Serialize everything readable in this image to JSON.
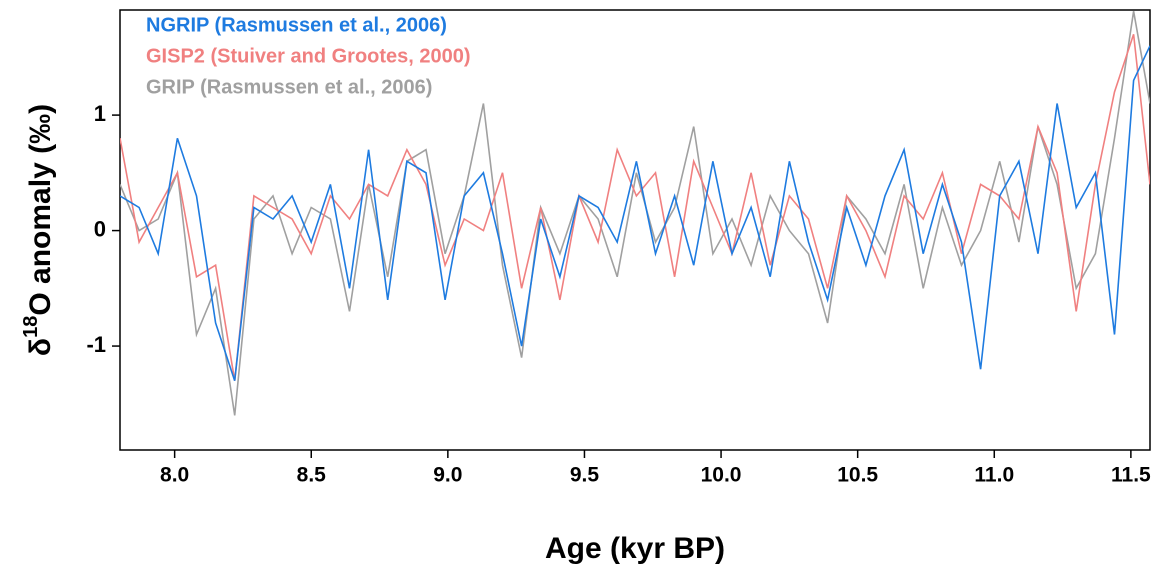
{
  "chart_data": {
    "type": "line",
    "xlabel": "Age (kyr BP)",
    "ylabel_parts": [
      "δ",
      "18",
      "O anomaly (‰)"
    ],
    "legend": "upper left",
    "x": [
      7.8,
      7.87,
      7.94,
      8.01,
      8.08,
      8.15,
      8.22,
      8.29,
      8.36,
      8.43,
      8.5,
      8.57,
      8.64,
      8.71,
      8.78,
      8.85,
      8.92,
      8.99,
      9.06,
      9.13,
      9.2,
      9.27,
      9.34,
      9.41,
      9.48,
      9.55,
      9.62,
      9.69,
      9.76,
      9.83,
      9.9,
      9.97,
      10.04,
      10.11,
      10.18,
      10.25,
      10.32,
      10.39,
      10.46,
      10.53,
      10.6,
      10.67,
      10.74,
      10.81,
      10.88,
      10.95,
      11.02,
      11.09,
      11.16,
      11.23,
      11.3,
      11.37,
      11.44,
      11.51,
      11.57
    ],
    "series": [
      {
        "name": "NGRIP (Rasmussen et al., 2006)",
        "color": "#1e7be0",
        "values": [
          0.3,
          0.2,
          -0.2,
          0.8,
          0.3,
          -0.8,
          -1.3,
          0.2,
          0.1,
          0.3,
          -0.1,
          0.4,
          -0.5,
          0.7,
          -0.6,
          0.6,
          0.5,
          -0.6,
          0.3,
          0.5,
          -0.2,
          -1.0,
          0.1,
          -0.4,
          0.3,
          0.2,
          -0.1,
          0.6,
          -0.2,
          0.3,
          -0.3,
          0.6,
          -0.2,
          0.2,
          -0.4,
          0.6,
          -0.1,
          -0.6,
          0.2,
          -0.3,
          0.3,
          0.7,
          -0.2,
          0.4,
          -0.1,
          -1.2,
          0.3,
          0.6,
          -0.2,
          1.1,
          0.2,
          0.5,
          -0.9,
          1.3,
          1.6
        ]
      },
      {
        "name": "GISP2 (Stuiver and Grootes, 2000)",
        "color": "#f08080",
        "values": [
          0.8,
          -0.1,
          0.2,
          0.5,
          -0.4,
          -0.3,
          -1.3,
          0.3,
          0.2,
          0.1,
          -0.2,
          0.3,
          0.1,
          0.4,
          0.3,
          0.7,
          0.4,
          -0.3,
          0.1,
          0.0,
          0.5,
          -0.5,
          0.2,
          -0.6,
          0.3,
          -0.1,
          0.7,
          0.3,
          0.5,
          -0.4,
          0.6,
          0.2,
          -0.2,
          0.5,
          -0.3,
          0.3,
          0.1,
          -0.5,
          0.3,
          0.0,
          -0.4,
          0.3,
          0.1,
          0.5,
          -0.2,
          0.4,
          0.3,
          0.1,
          0.9,
          0.5,
          -0.7,
          0.4,
          1.2,
          1.7,
          0.4
        ]
      },
      {
        "name": "GRIP (Rasmussen et al., 2006)",
        "color": "#a0a0a0",
        "values": [
          0.4,
          0.0,
          0.1,
          0.5,
          -0.9,
          -0.5,
          -1.6,
          0.1,
          0.3,
          -0.2,
          0.2,
          0.1,
          -0.7,
          0.4,
          -0.4,
          0.6,
          0.7,
          -0.2,
          0.3,
          1.1,
          -0.3,
          -1.1,
          0.2,
          -0.2,
          0.3,
          0.1,
          -0.4,
          0.5,
          -0.1,
          0.2,
          0.9,
          -0.2,
          0.1,
          -0.3,
          0.3,
          0.0,
          -0.2,
          -0.8,
          0.3,
          0.1,
          -0.2,
          0.4,
          -0.5,
          0.2,
          -0.3,
          0.0,
          0.6,
          -0.1,
          0.9,
          0.4,
          -0.5,
          -0.2,
          0.8,
          1.9,
          1.1
        ]
      }
    ],
    "xlim": [
      7.8,
      11.57
    ],
    "ylim": [
      -1.9,
      1.91
    ],
    "xticks": [
      {
        "value": 8.0,
        "label": "8.0"
      },
      8.5,
      {
        "value": 9.0,
        "label": "9.0"
      },
      9.5,
      {
        "value": 10.0,
        "label": "10.0"
      },
      10.5,
      {
        "value": 11.0,
        "label": "11.0"
      },
      11.5
    ],
    "yticks": [
      -1,
      0,
      1
    ]
  }
}
